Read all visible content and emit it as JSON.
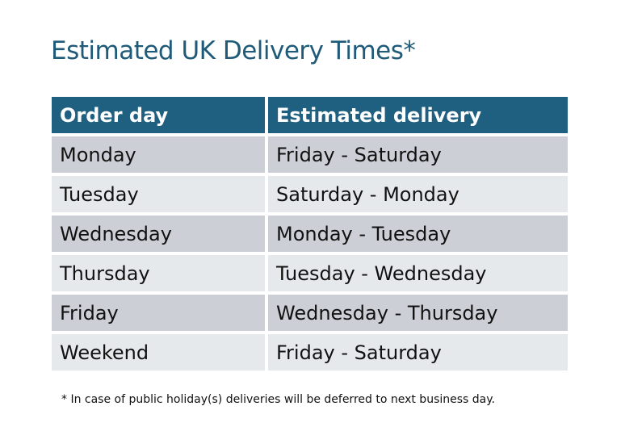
{
  "title": "Estimated UK Delivery Times*",
  "table": {
    "headers": [
      "Order day",
      "Estimated delivery"
    ],
    "rows": [
      [
        "Monday",
        "Friday - Saturday"
      ],
      [
        "Tuesday",
        "Saturday - Monday"
      ],
      [
        "Wednesday",
        "Monday - Tuesday"
      ],
      [
        "Thursday",
        "Tuesday - Wednesday"
      ],
      [
        "Friday",
        "Wednesday - Thursday"
      ],
      [
        "Weekend",
        "Friday - Saturday"
      ]
    ]
  },
  "footnote": "* In case of public holiday(s) deliveries will be deferred to next business day.",
  "colors": {
    "header": "#1f5f80",
    "row_dark": "#ccd0d6",
    "row_light": "#e6e9ec",
    "title": "#1f5a78"
  }
}
